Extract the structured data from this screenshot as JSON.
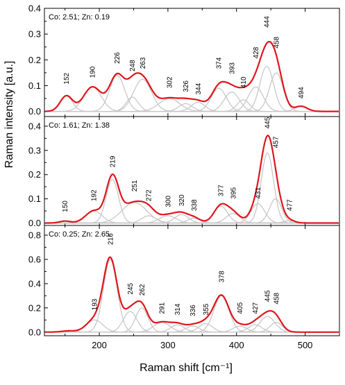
{
  "chart_data": {
    "type": "line",
    "xlabel": "Raman shift [cm⁻¹]",
    "ylabel": "Raman intensity [a.u.]",
    "xlim": [
      120,
      550
    ],
    "xticks": [
      "200",
      "300",
      "400",
      "500"
    ],
    "grid": false,
    "colors": {
      "fit": "#e0141b",
      "component": "#c8c8c8",
      "data": "#7f7f7f"
    },
    "panels": [
      {
        "annotation": "Co: 2.51; Zn: 0.19",
        "ylim": [
          -0.02,
          0.4
        ],
        "yticks": [
          "0.0",
          "0.1",
          "0.2",
          "0.3",
          "0.4"
        ],
        "peaks": [
          {
            "pos": 152,
            "height": 0.06,
            "width": 9
          },
          {
            "pos": 190,
            "height": 0.095,
            "width": 13
          },
          {
            "pos": 226,
            "height": 0.14,
            "width": 11
          },
          {
            "pos": 248,
            "height": 0.055,
            "width": 9
          },
          {
            "pos": 263,
            "height": 0.125,
            "width": 13
          },
          {
            "pos": 302,
            "height": 0.05,
            "width": 15
          },
          {
            "pos": 326,
            "height": 0.03,
            "width": 10
          },
          {
            "pos": 344,
            "height": 0.035,
            "width": 10
          },
          {
            "pos": 374,
            "height": 0.09,
            "width": 11
          },
          {
            "pos": 393,
            "height": 0.075,
            "width": 11
          },
          {
            "pos": 410,
            "height": 0.045,
            "width": 9
          },
          {
            "pos": 428,
            "height": 0.095,
            "width": 11
          },
          {
            "pos": 444,
            "height": 0.175,
            "width": 10
          },
          {
            "pos": 458,
            "height": 0.15,
            "width": 10
          },
          {
            "pos": 494,
            "height": 0.02,
            "width": 9
          }
        ],
        "labels": [
          {
            "text": "152",
            "x": 152,
            "y": 0.105
          },
          {
            "text": "190",
            "x": 190,
            "y": 0.13
          },
          {
            "text": "226",
            "x": 226,
            "y": 0.185
          },
          {
            "text": "248",
            "x": 248,
            "y": 0.155
          },
          {
            "text": "263",
            "x": 263,
            "y": 0.165
          },
          {
            "text": "302",
            "x": 302,
            "y": 0.09
          },
          {
            "text": "326",
            "x": 326,
            "y": 0.075
          },
          {
            "text": "344",
            "x": 344,
            "y": 0.065
          },
          {
            "text": "374",
            "x": 374,
            "y": 0.165
          },
          {
            "text": "393",
            "x": 393,
            "y": 0.145
          },
          {
            "text": "410",
            "x": 410,
            "y": 0.09
          },
          {
            "text": "428",
            "x": 428,
            "y": 0.205
          },
          {
            "text": "444",
            "x": 444,
            "y": 0.325
          },
          {
            "text": "458",
            "x": 458,
            "y": 0.245
          },
          {
            "text": "494",
            "x": 494,
            "y": 0.05
          }
        ]
      },
      {
        "annotation": "Co: 1.61; Zn: 1.38",
        "ylim": [
          -0.01,
          0.44
        ],
        "yticks": [
          "0.0",
          "0.1",
          "0.2",
          "0.3",
          "0.4"
        ],
        "peaks": [
          {
            "pos": 150,
            "height": 0.008,
            "width": 8
          },
          {
            "pos": 192,
            "height": 0.05,
            "width": 12
          },
          {
            "pos": 219,
            "height": 0.18,
            "width": 9
          },
          {
            "pos": 251,
            "height": 0.085,
            "width": 18
          },
          {
            "pos": 272,
            "height": 0.03,
            "width": 10
          },
          {
            "pos": 300,
            "height": 0.03,
            "width": 12
          },
          {
            "pos": 320,
            "height": 0.035,
            "width": 10
          },
          {
            "pos": 338,
            "height": 0.02,
            "width": 9
          },
          {
            "pos": 377,
            "height": 0.07,
            "width": 10
          },
          {
            "pos": 395,
            "height": 0.04,
            "width": 10
          },
          {
            "pos": 431,
            "height": 0.08,
            "width": 10
          },
          {
            "pos": 445,
            "height": 0.29,
            "width": 9
          },
          {
            "pos": 457,
            "height": 0.1,
            "width": 9
          },
          {
            "pos": 477,
            "height": 0.01,
            "width": 8
          }
        ],
        "labels": [
          {
            "text": "150",
            "x": 150,
            "y": 0.045
          },
          {
            "text": "192",
            "x": 192,
            "y": 0.09
          },
          {
            "text": "219",
            "x": 219,
            "y": 0.23
          },
          {
            "text": "251",
            "x": 251,
            "y": 0.13
          },
          {
            "text": "272",
            "x": 272,
            "y": 0.09
          },
          {
            "text": "300",
            "x": 300,
            "y": 0.065
          },
          {
            "text": "320",
            "x": 320,
            "y": 0.07
          },
          {
            "text": "338",
            "x": 338,
            "y": 0.05
          },
          {
            "text": "377",
            "x": 377,
            "y": 0.11
          },
          {
            "text": "395",
            "x": 395,
            "y": 0.1
          },
          {
            "text": "431",
            "x": 431,
            "y": 0.1
          },
          {
            "text": "445",
            "x": 445,
            "y": 0.39
          },
          {
            "text": "457",
            "x": 457,
            "y": 0.31
          },
          {
            "text": "477",
            "x": 477,
            "y": 0.05
          }
        ]
      },
      {
        "annotation": "Co: 0.25; Zn: 2.65",
        "ylim": [
          -0.03,
          0.88
        ],
        "yticks": [
          "0.0",
          "0.2",
          "0.4",
          "0.6",
          "0.8"
        ],
        "peaks": [
          {
            "pos": 155,
            "height": 0.01,
            "width": 10
          },
          {
            "pos": 193,
            "height": 0.1,
            "width": 12
          },
          {
            "pos": 216,
            "height": 0.6,
            "width": 10
          },
          {
            "pos": 245,
            "height": 0.17,
            "width": 10
          },
          {
            "pos": 262,
            "height": 0.2,
            "width": 9
          },
          {
            "pos": 291,
            "height": 0.08,
            "width": 12
          },
          {
            "pos": 314,
            "height": 0.06,
            "width": 10
          },
          {
            "pos": 336,
            "height": 0.05,
            "width": 10
          },
          {
            "pos": 355,
            "height": 0.07,
            "width": 10
          },
          {
            "pos": 378,
            "height": 0.3,
            "width": 11
          },
          {
            "pos": 405,
            "height": 0.05,
            "width": 10
          },
          {
            "pos": 427,
            "height": 0.06,
            "width": 10
          },
          {
            "pos": 445,
            "height": 0.13,
            "width": 11
          },
          {
            "pos": 458,
            "height": 0.08,
            "width": 9
          }
        ],
        "labels": [
          {
            "text": "193",
            "x": 193,
            "y": 0.18
          },
          {
            "text": "216",
            "x": 216,
            "y": 0.72
          },
          {
            "text": "245",
            "x": 245,
            "y": 0.31
          },
          {
            "text": "262",
            "x": 262,
            "y": 0.3
          },
          {
            "text": "291",
            "x": 291,
            "y": 0.15
          },
          {
            "text": "314",
            "x": 314,
            "y": 0.14
          },
          {
            "text": "336",
            "x": 336,
            "y": 0.13
          },
          {
            "text": "355",
            "x": 355,
            "y": 0.14
          },
          {
            "text": "378",
            "x": 378,
            "y": 0.41
          },
          {
            "text": "405",
            "x": 405,
            "y": 0.15
          },
          {
            "text": "427",
            "x": 427,
            "y": 0.15
          },
          {
            "text": "445",
            "x": 445,
            "y": 0.25
          },
          {
            "text": "458",
            "x": 458,
            "y": 0.23
          }
        ]
      }
    ]
  }
}
